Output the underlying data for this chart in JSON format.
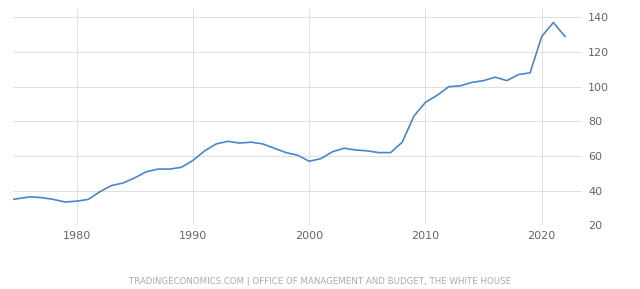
{
  "title": "",
  "source_text": "TRADINGECONOMICS.COM | OFFICE OF MANAGEMENT AND BUDGET, THE WHITE HOUSE",
  "line_color": "#4a86c8",
  "background_color": "#ffffff",
  "grid_color": "#e0e0e0",
  "xlim": [
    1974.5,
    2023.5
  ],
  "ylim": [
    20,
    145
  ],
  "yticks": [
    20,
    40,
    60,
    80,
    100,
    120,
    140
  ],
  "xticks": [
    1980,
    1990,
    2000,
    2010,
    2020
  ],
  "years": [
    1974,
    1975,
    1976,
    1977,
    1978,
    1979,
    1980,
    1981,
    1982,
    1983,
    1984,
    1985,
    1986,
    1987,
    1988,
    1989,
    1990,
    1991,
    1992,
    1993,
    1994,
    1995,
    1996,
    1997,
    1998,
    1999,
    2000,
    2001,
    2002,
    2003,
    2004,
    2005,
    2006,
    2007,
    2008,
    2009,
    2010,
    2011,
    2012,
    2013,
    2014,
    2015,
    2016,
    2017,
    2018,
    2019,
    2020,
    2021,
    2022
  ],
  "values": [
    34.5,
    35.5,
    36.5,
    36.0,
    35.0,
    33.5,
    34.0,
    35.0,
    39.5,
    43.0,
    44.5,
    47.5,
    51.0,
    52.5,
    52.5,
    53.5,
    57.5,
    63.0,
    67.0,
    68.5,
    67.5,
    68.0,
    67.0,
    64.5,
    62.0,
    60.5,
    57.0,
    58.5,
    62.5,
    64.5,
    63.5,
    63.0,
    62.0,
    62.0,
    68.0,
    83.0,
    91.0,
    95.0,
    100.0,
    100.5,
    102.5,
    103.5,
    105.5,
    103.5,
    107.0,
    108.0,
    129.0,
    137.0,
    129.0
  ]
}
